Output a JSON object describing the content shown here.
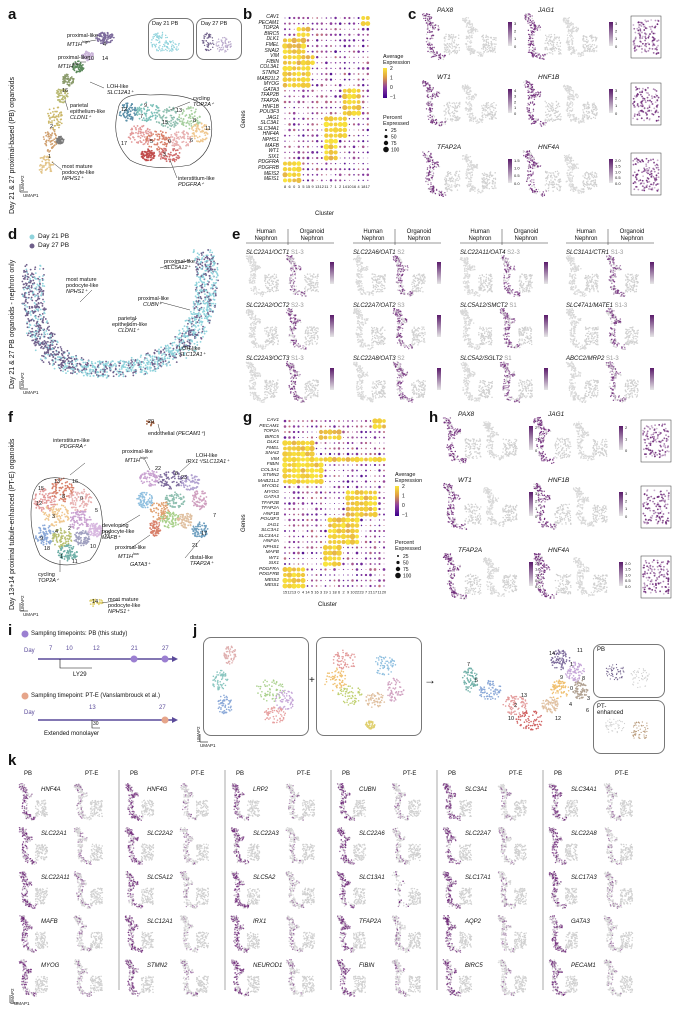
{
  "panels": {
    "a": {
      "letter": "a",
      "title": "Day 21 & 27 proximal-based (PB) organoids",
      "inset1": "Day 21 PB",
      "inset2": "Day 27 PB",
      "lbl_prox_hi_1": "proximal-like",
      "lbl_prox_hi_2": "MT1H",
      "lbl_prox_hi_sup": "high",
      "lbl_prox_lo_1": "proximal-like",
      "lbl_prox_lo_2": "MT1H",
      "lbl_prox_lo_sup": "low",
      "lbl_loh_1": "LOH-like",
      "lbl_loh_2": "SLC12A1⁺",
      "lbl_par_1": "parietal",
      "lbl_par_2": "epithelium-like",
      "lbl_par_3": "CLDN1⁺",
      "lbl_cyc_1": "cycling",
      "lbl_cyc_2": "TOP2A⁺",
      "lbl_pod_1": "most mature",
      "lbl_pod_2": "podocyte-like",
      "lbl_pod_3": "NPHS1⁺",
      "lbl_int_1": "interstitium-like",
      "lbl_int_2": "PDGFRA⁺",
      "umap2": "UMAP2",
      "umap1": "UMAP1",
      "clusters": [
        "4",
        "10",
        "14",
        "16",
        "2",
        "1",
        "12",
        "9",
        "15",
        "8",
        "6",
        "0",
        "17",
        "5",
        "3",
        "7",
        "11",
        "13"
      ]
    },
    "b": {
      "letter": "b",
      "genes": [
        "CAV1",
        "PECAM1",
        "TOP2A",
        "BIRC5",
        "DLK1",
        "FMEL",
        "SNAI2",
        "VIM",
        "FIBIN",
        "COL3A1",
        "STMN2",
        "MAB21L2",
        "MYOG",
        "GATA3",
        "TFAP2B",
        "TFAP2A",
        "HNF1B",
        "POU3F3",
        "JAG1",
        "SLC3A1",
        "SLC34A1",
        "HNF4A",
        "NPHS1",
        "MAFB",
        "WT1",
        "SIX1",
        "PDGFRA",
        "PDGFRB",
        "MEIS2",
        "MEIS1"
      ],
      "clusters": [
        "8",
        "6",
        "0",
        "3",
        "5",
        "15",
        "9",
        "13",
        "12",
        "11",
        "7",
        "1",
        "2",
        "14",
        "10",
        "16",
        "4",
        "18",
        "17"
      ],
      "ylabel": "Genes",
      "xlabel": "Cluster",
      "legend_expr_title": "Average\nExpression",
      "legend_expr_ticks": [
        "2",
        "1",
        "0",
        "−1"
      ],
      "legend_pct_title": "Percent\nExpressed",
      "legend_pct_ticks": [
        "25",
        "50",
        "75",
        "100"
      ]
    },
    "c": {
      "letter": "c",
      "genes": [
        "PAX8",
        "JAG1",
        "WT1",
        "HNF1B",
        "TFAP2A",
        "HNF4A"
      ],
      "scale_pax8": [
        "3",
        "2",
        "1",
        "0"
      ],
      "scale_jag1": [
        "3",
        "2",
        "1",
        "0"
      ],
      "scale_wt1": [
        "4",
        "3",
        "2",
        "1",
        "0"
      ],
      "scale_hnf1b": [
        "3",
        "2",
        "1",
        "0"
      ],
      "scale_tfap2a": [
        "1.5",
        "1.0",
        "0.5",
        "0.0"
      ],
      "scale_hnf4a": [
        "2.0",
        "1.5",
        "1.0",
        "0.5",
        "0.0"
      ]
    },
    "d": {
      "letter": "d",
      "title": "Day 21 & 27 PB organoids - nephron only",
      "legend": [
        "Day 21 PB",
        "Day 27 PB"
      ],
      "colors": [
        "#8fd3dc",
        "#6f5f8a"
      ],
      "lbl_pod_1": "most mature",
      "lbl_pod_2": "podocyte-like",
      "lbl_pod_3": "NPHS1⁺",
      "lbl_prox_1": "proximal-like",
      "lbl_prox_2": "SLC5A12⁺",
      "lbl_prox2_1": "proximal-like",
      "lbl_prox2_2": "CUBN⁺",
      "lbl_par_1": "parietal",
      "lbl_par_2": "epithelium-like",
      "lbl_par_3": "CLDN1⁺",
      "lbl_loh_1": "LOH-like",
      "lbl_loh_2": "SLC12A1⁺",
      "umap2": "UMAP2",
      "umap1": "UMAP1"
    },
    "e": {
      "letter": "e",
      "col_human": "Human\nNephron",
      "col_org": "Organoid\nNephron",
      "rows": [
        [
          "SLC22A1/OCT1",
          "S1-3",
          "SLC22A6/OAT1",
          "S2",
          "SLC22A11/OAT4",
          "S2-3",
          "SLC31A1/CTR1",
          "S1-3"
        ],
        [
          "SLC22A2/OCT2",
          "S2-3",
          "SLC22A7/OAT2",
          "S3",
          "SLC5A12/SMCT2",
          "S1",
          "SLC47A1/MATE1",
          "S1-3"
        ],
        [
          "SLC22A3/OCT3",
          "S1-3",
          "SLC22A8/OAT3",
          "S2",
          "SLC5A2/SGLT2",
          "S1",
          "ABCC2/MRP2",
          "S1-3"
        ]
      ]
    },
    "f": {
      "letter": "f",
      "title": "Day 13+14 proximal tubule-enhanced (PT-E) organoids",
      "lbl_endo_1": "endothelial (",
      "lbl_endo_2": "PECAM1⁺",
      "lbl_endo_3": ")",
      "lbl_endo_num": "20",
      "lbl_int_1": "interstitium-like",
      "lbl_int_2": "PDGFRA⁺",
      "lbl_prox_hi_1": "proximal-like",
      "lbl_prox_hi_2": "MT1H",
      "lbl_prox_hi_sup": "high",
      "lbl_loh_1": "LOH-like",
      "lbl_loh_2": "IRX1⁺/SLC12A1⁺",
      "lbl_dev_1": "developing",
      "lbl_dev_2": "podocyte-like",
      "lbl_dev_3": "MAFB⁺",
      "lbl_prox_lo_1": "proximal-like",
      "lbl_prox_lo_2": "MT1H",
      "lbl_prox_lo_sup": "low",
      "lbl_gata_1": "GATA3⁺",
      "lbl_dist_1": "distal-like",
      "lbl_dist_2": "TFAP2A⁺",
      "lbl_cyc_1": "cycling",
      "lbl_cyc_2": "TOP2A⁺",
      "lbl_pod_1": "most mature",
      "lbl_pod_2": "podocyte-like",
      "lbl_pod_3": "NPHS1⁺",
      "clusters": [
        "15",
        "13",
        "12",
        "16",
        "8",
        "0",
        "3",
        "4",
        "2",
        "5",
        "9",
        "18",
        "1",
        "10",
        "19",
        "11",
        "6",
        "17",
        "14",
        "22",
        "23",
        "21",
        "7"
      ],
      "umap2": "UMAP2",
      "umap1": "UMAP1"
    },
    "g": {
      "letter": "g",
      "genes": [
        "CAV1",
        "PECAM1",
        "TOP2A",
        "BIRC5",
        "DLK1",
        "FMEL",
        "SNAI2",
        "VIM",
        "FIBIN",
        "COL3A1",
        "STMN2",
        "MAB21L2",
        "MYOD1",
        "MYOG",
        "GATA3",
        "TFAP2B",
        "TFAP2A",
        "HNF1B",
        "POU3F3",
        "JAG1",
        "SLC3A1",
        "SLC34A1",
        "HNF4A",
        "NPHS1",
        "MAFB",
        "WT1",
        "SIX1",
        "PDGFRA",
        "PDGFRB",
        "MEIS2",
        "MEIS1"
      ],
      "clusters": [
        "15",
        "12",
        "13",
        "0",
        "4",
        "14",
        "5",
        "16",
        "3",
        "19",
        "1",
        "18",
        "6",
        "2",
        "9",
        "10",
        "22",
        "23",
        "7",
        "21",
        "17",
        "11",
        "20"
      ],
      "ylabel": "Genes",
      "xlabel": "Cluster",
      "legend_expr_title": "Average\nExpression",
      "legend_expr_ticks": [
        "2",
        "1",
        "0",
        "−1"
      ],
      "legend_pct_title": "Percent\nExpressed",
      "legend_pct_ticks": [
        "25",
        "50",
        "75",
        "100"
      ]
    },
    "h": {
      "letter": "h",
      "genes": [
        "PAX8",
        "JAG1",
        "WT1",
        "HNF1B",
        "TFAP2A",
        "HNF4A"
      ],
      "scale_pax8": [
        "2",
        "1",
        "0"
      ],
      "scale_jag1": [
        "2",
        "1",
        "0"
      ],
      "scale_wt1": [
        "3",
        "2",
        "1",
        "0"
      ],
      "scale_hnf1b": [
        "3",
        "2",
        "1",
        "0"
      ],
      "scale_tfap2a": [
        "2.0",
        "1.5",
        "1.0",
        "0.5",
        "0.0"
      ],
      "scale_hnf4a": [
        "2.0",
        "1.5",
        "1.0",
        "0.5",
        "0.0"
      ]
    },
    "i": {
      "letter": "i",
      "legend1": "Sampling timepoints: PB (this study)",
      "legend2": "Sampling timepoint: PT-E (Vanslambrouck et al.)",
      "day": "Day",
      "days1": [
        "7",
        "10",
        "12",
        "21",
        "27"
      ],
      "ly29": "LY29",
      "days2": [
        "13",
        "27"
      ],
      "n30": "30",
      "ext": "Extended monolayer",
      "color_pb": "#9b7fd1",
      "color_pte": "#e6a58a"
    },
    "j": {
      "letter": "j",
      "plus": "+",
      "arrow": "→",
      "pb_label": "PB",
      "pte_label": "PT-\nenhanced",
      "clusters": [
        "14",
        "11",
        "1",
        "8",
        "3",
        "0",
        "2",
        "12",
        "13",
        "7",
        "5",
        "10",
        "4",
        "6",
        "9"
      ],
      "umap2": "UMAP2",
      "umap1": "UMAP1"
    },
    "k": {
      "letter": "k",
      "pb": "PB",
      "pte": "PT-E",
      "grid": [
        [
          "HNF4A",
          "HNF4G",
          "LRP2",
          "CUBN",
          "SLC3A1",
          "SLC34A1"
        ],
        [
          "SLC22A1",
          "SLC22A2",
          "SLC22A3",
          "SLC22A6",
          "SLC22A7",
          "SLC22A8"
        ],
        [
          "SLC22A11",
          "SLC5A12",
          "SLC5A2",
          "SLC13A1",
          "SLC17A1",
          "SLC17A3"
        ],
        [
          "MAFB",
          "SLC12A1",
          "IRX1",
          "TFAP2A",
          "AQP2",
          "GATA3"
        ],
        [
          "MYOG",
          "STMN2",
          "NEUROD1",
          "FIBIN",
          "BIRC5",
          "PECAM1"
        ]
      ],
      "umap2": "UMAP2",
      "umap1": "UMAP1"
    }
  }
}
